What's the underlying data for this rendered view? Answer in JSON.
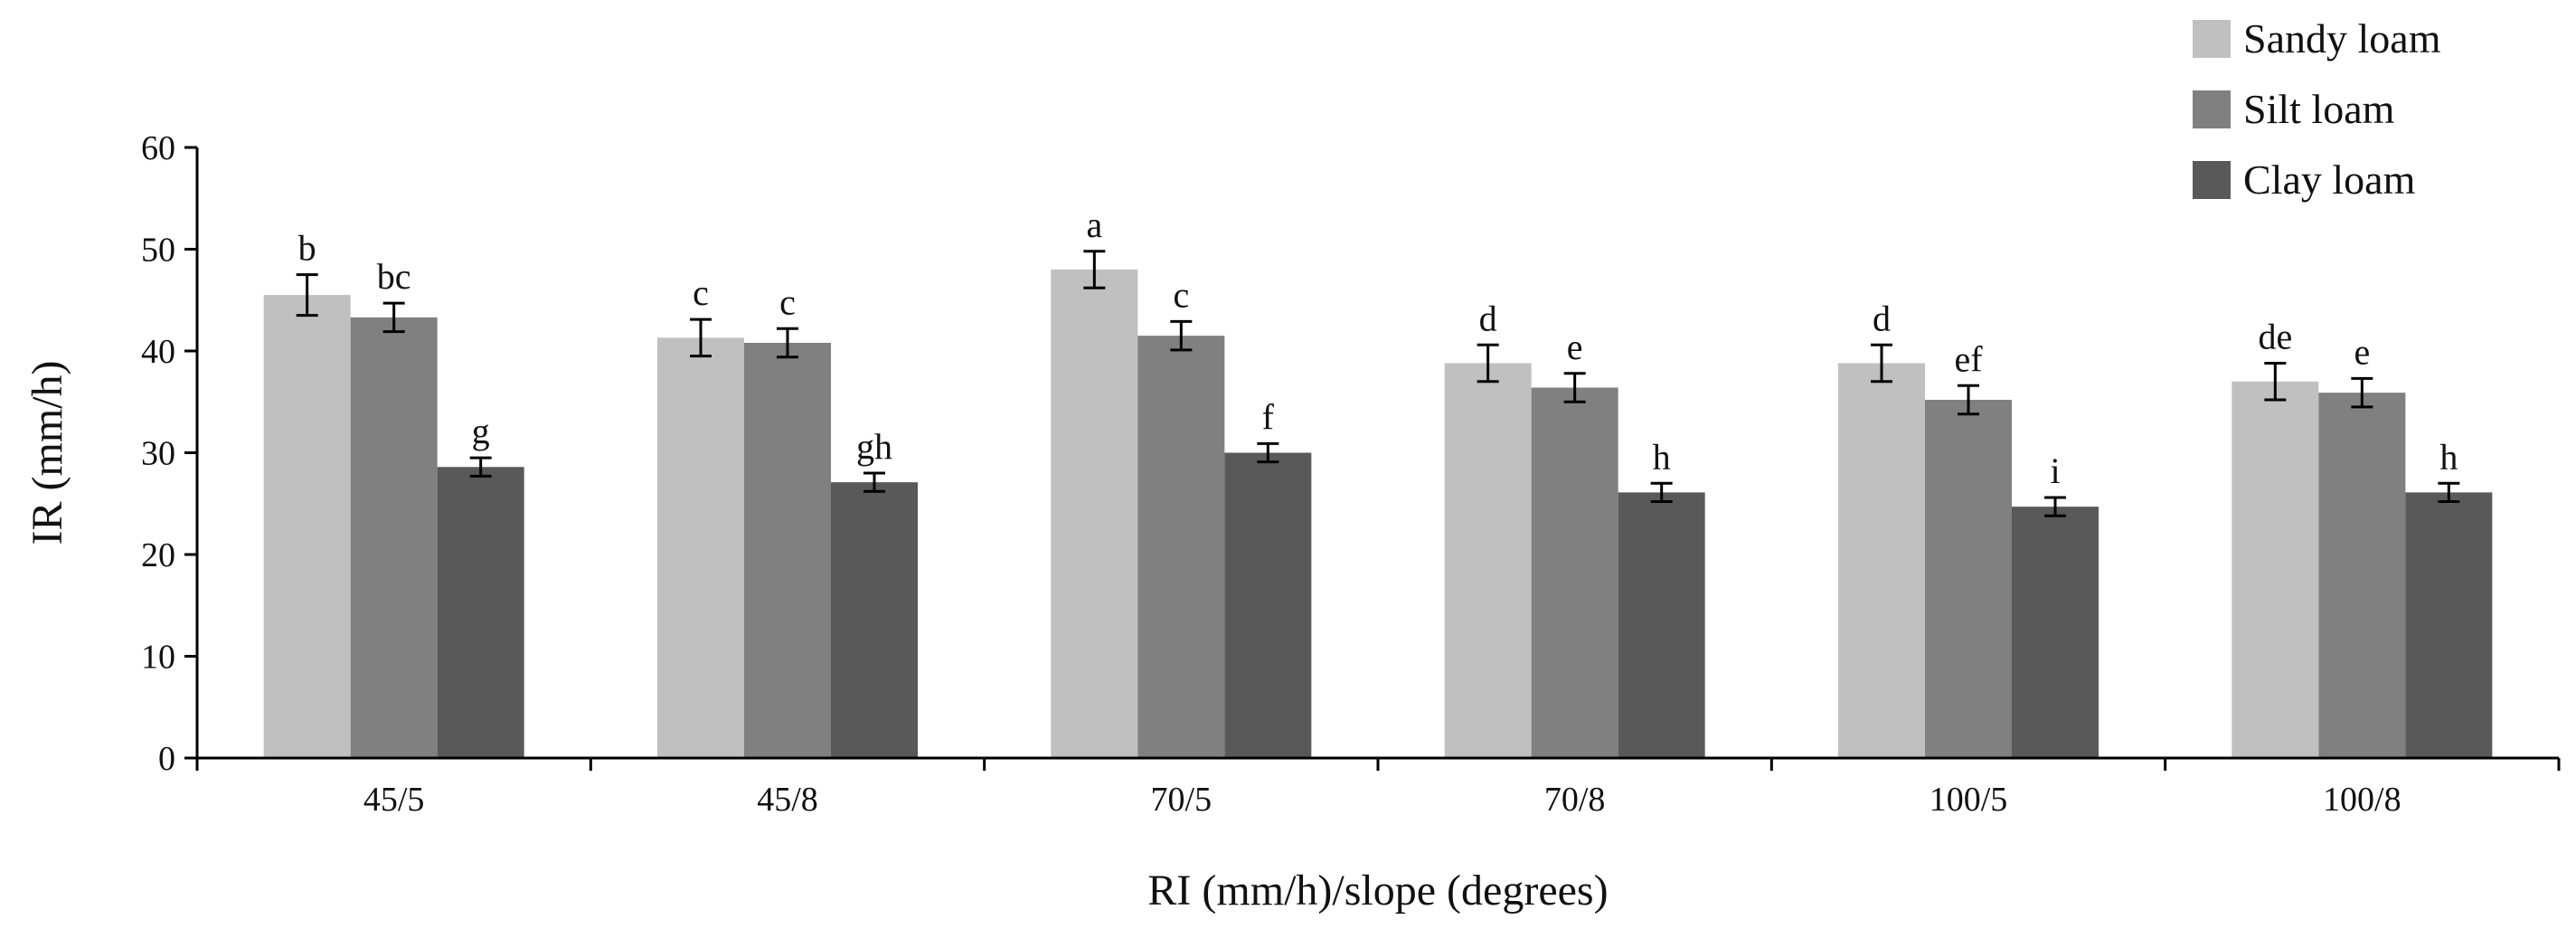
{
  "chart_data": {
    "type": "bar",
    "title": "",
    "xlabel": "RI (mm/h)/slope (degrees)",
    "ylabel": "IR (mm/h)",
    "ylim": [
      0,
      60
    ],
    "yticks": [
      0,
      10,
      20,
      30,
      40,
      50,
      60
    ],
    "grid": false,
    "legend_position": "top-right",
    "categories": [
      "45/5",
      "45/8",
      "70/5",
      "70/8",
      "100/5",
      "100/8"
    ],
    "series": [
      {
        "name": "Sandy loam",
        "color": "#c0c0c0",
        "values": [
          45.5,
          41.3,
          48.0,
          38.8,
          38.8,
          37.0
        ],
        "errors": [
          2.0,
          1.8,
          1.8,
          1.8,
          1.8,
          1.8
        ],
        "labels": [
          "b",
          "c",
          "a",
          "d",
          "d",
          "de"
        ]
      },
      {
        "name": "Silt loam",
        "color": "#808080",
        "values": [
          43.3,
          40.8,
          41.5,
          36.4,
          35.2,
          35.9
        ],
        "errors": [
          1.4,
          1.4,
          1.4,
          1.4,
          1.4,
          1.4
        ],
        "labels": [
          "bc",
          "c",
          "c",
          "e",
          "ef",
          "e"
        ]
      },
      {
        "name": "Clay loam",
        "color": "#595959",
        "values": [
          28.6,
          27.1,
          30.0,
          26.1,
          24.7,
          26.1
        ],
        "errors": [
          0.9,
          0.9,
          0.9,
          0.9,
          0.9,
          0.9
        ],
        "labels": [
          "g",
          "gh",
          "f",
          "h",
          "i",
          "h"
        ]
      }
    ]
  }
}
